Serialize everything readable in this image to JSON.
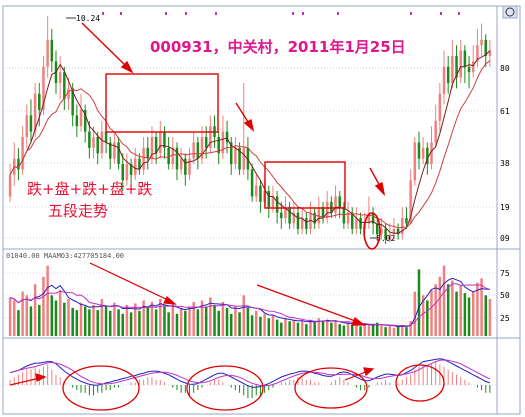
{
  "chart_data": {
    "type": "candlestick",
    "title": "000931，中关村，2011年1月25日",
    "annotation_main": [
      "跌+盘+跌+盘+跌",
      "五段走势"
    ],
    "high_label": "10.24",
    "low_label": "6.02",
    "price_axis_ticks": [
      "80",
      "61",
      "38",
      "19",
      "09"
    ],
    "volume_legend": "01040.00  MAAMO3:427705184.00",
    "volume_axis_ticks": [
      "75",
      "50",
      "25"
    ],
    "colors": {
      "up": "#f08080",
      "down": "#1a8a1a",
      "ma_short": "#7a1e1e",
      "ma_long": "#d04040",
      "vol_ma1": "#2020c0",
      "vol_ma2": "#c030c0",
      "title": "#e0168c",
      "annotation": "#ee1133",
      "box": "#e00000",
      "arrow": "#e00000",
      "grid": "#9aa8c8"
    },
    "candles": [
      {
        "o": 6.9,
        "c": 7.3,
        "h": 7.5,
        "l": 6.8
      },
      {
        "o": 7.3,
        "c": 7.6,
        "h": 7.9,
        "l": 7.1
      },
      {
        "o": 7.6,
        "c": 7.4,
        "h": 7.8,
        "l": 7.2
      },
      {
        "o": 7.4,
        "c": 8.0,
        "h": 8.2,
        "l": 7.3
      },
      {
        "o": 8.0,
        "c": 8.4,
        "h": 8.6,
        "l": 7.8
      },
      {
        "o": 8.4,
        "c": 8.1,
        "h": 8.7,
        "l": 7.9
      },
      {
        "o": 8.1,
        "c": 8.8,
        "h": 9.0,
        "l": 8.0
      },
      {
        "o": 8.8,
        "c": 8.5,
        "h": 9.0,
        "l": 8.2
      },
      {
        "o": 8.5,
        "c": 9.3,
        "h": 9.5,
        "l": 8.4
      },
      {
        "o": 9.3,
        "c": 9.8,
        "h": 10.24,
        "l": 9.1
      },
      {
        "o": 9.8,
        "c": 9.4,
        "h": 10.0,
        "l": 9.2
      },
      {
        "o": 9.4,
        "c": 9.0,
        "h": 9.6,
        "l": 8.8
      },
      {
        "o": 9.0,
        "c": 9.2,
        "h": 9.5,
        "l": 8.7
      },
      {
        "o": 9.2,
        "c": 8.7,
        "h": 9.3,
        "l": 8.5
      },
      {
        "o": 8.7,
        "c": 8.9,
        "h": 9.1,
        "l": 8.5
      },
      {
        "o": 8.9,
        "c": 8.4,
        "h": 9.0,
        "l": 8.2
      },
      {
        "o": 8.4,
        "c": 8.2,
        "h": 8.6,
        "l": 8.0
      },
      {
        "o": 8.2,
        "c": 8.5,
        "h": 8.8,
        "l": 8.1
      },
      {
        "o": 8.5,
        "c": 8.1,
        "h": 8.6,
        "l": 7.9
      },
      {
        "o": 8.1,
        "c": 7.8,
        "h": 8.3,
        "l": 7.6
      },
      {
        "o": 7.8,
        "c": 8.0,
        "h": 8.2,
        "l": 7.6
      },
      {
        "o": 8.0,
        "c": 7.7,
        "h": 8.1,
        "l": 7.5
      },
      {
        "o": 7.7,
        "c": 8.1,
        "h": 8.3,
        "l": 7.6
      },
      {
        "o": 8.1,
        "c": 7.9,
        "h": 8.4,
        "l": 7.7
      },
      {
        "o": 7.9,
        "c": 7.6,
        "h": 8.0,
        "l": 7.4
      },
      {
        "o": 7.6,
        "c": 7.9,
        "h": 8.1,
        "l": 7.5
      },
      {
        "o": 7.9,
        "c": 7.5,
        "h": 8.0,
        "l": 7.4
      },
      {
        "o": 7.5,
        "c": 7.2,
        "h": 7.7,
        "l": 7.0
      },
      {
        "o": 7.2,
        "c": 7.5,
        "h": 7.7,
        "l": 7.1
      },
      {
        "o": 7.5,
        "c": 7.3,
        "h": 7.6,
        "l": 7.1
      },
      {
        "o": 7.3,
        "c": 7.6,
        "h": 7.8,
        "l": 7.2
      },
      {
        "o": 7.6,
        "c": 7.4,
        "h": 7.7,
        "l": 7.3
      },
      {
        "o": 7.4,
        "c": 7.8,
        "h": 8.0,
        "l": 7.3
      },
      {
        "o": 7.8,
        "c": 7.6,
        "h": 8.0,
        "l": 7.4
      },
      {
        "o": 7.6,
        "c": 8.0,
        "h": 8.2,
        "l": 7.5
      },
      {
        "o": 8.0,
        "c": 7.7,
        "h": 8.1,
        "l": 7.5
      },
      {
        "o": 7.7,
        "c": 8.1,
        "h": 8.3,
        "l": 7.6
      },
      {
        "o": 8.1,
        "c": 7.8,
        "h": 8.2,
        "l": 7.6
      },
      {
        "o": 7.8,
        "c": 7.5,
        "h": 8.0,
        "l": 7.4
      },
      {
        "o": 7.5,
        "c": 7.8,
        "h": 8.0,
        "l": 7.4
      },
      {
        "o": 7.8,
        "c": 7.4,
        "h": 7.9,
        "l": 7.2
      },
      {
        "o": 7.4,
        "c": 7.6,
        "h": 7.8,
        "l": 7.3
      },
      {
        "o": 7.6,
        "c": 7.3,
        "h": 7.7,
        "l": 7.1
      },
      {
        "o": 7.3,
        "c": 7.6,
        "h": 7.8,
        "l": 7.2
      },
      {
        "o": 7.6,
        "c": 7.9,
        "h": 8.1,
        "l": 7.5
      },
      {
        "o": 7.9,
        "c": 7.6,
        "h": 8.0,
        "l": 7.4
      },
      {
        "o": 7.6,
        "c": 8.0,
        "h": 8.2,
        "l": 7.5
      },
      {
        "o": 8.0,
        "c": 7.8,
        "h": 8.2,
        "l": 7.6
      },
      {
        "o": 7.8,
        "c": 8.2,
        "h": 8.4,
        "l": 7.7
      },
      {
        "o": 8.2,
        "c": 8.0,
        "h": 8.4,
        "l": 7.8
      },
      {
        "o": 8.0,
        "c": 7.7,
        "h": 8.1,
        "l": 7.5
      },
      {
        "o": 7.7,
        "c": 8.1,
        "h": 8.4,
        "l": 7.6
      },
      {
        "o": 8.1,
        "c": 7.9,
        "h": 8.3,
        "l": 7.7
      },
      {
        "o": 7.9,
        "c": 7.5,
        "h": 8.0,
        "l": 7.3
      },
      {
        "o": 7.5,
        "c": 7.8,
        "h": 8.0,
        "l": 7.4
      },
      {
        "o": 7.8,
        "c": 7.4,
        "h": 7.9,
        "l": 7.3
      },
      {
        "o": 7.4,
        "c": 7.8,
        "h": 9.0,
        "l": 7.3
      },
      {
        "o": 7.8,
        "c": 7.4,
        "h": 8.0,
        "l": 7.2
      },
      {
        "o": 7.4,
        "c": 6.9,
        "h": 7.5,
        "l": 6.8
      },
      {
        "o": 6.9,
        "c": 7.1,
        "h": 7.3,
        "l": 6.8
      },
      {
        "o": 7.1,
        "c": 6.8,
        "h": 7.2,
        "l": 6.6
      },
      {
        "o": 6.8,
        "c": 7.0,
        "h": 7.2,
        "l": 6.7
      },
      {
        "o": 7.0,
        "c": 6.7,
        "h": 7.1,
        "l": 6.5
      },
      {
        "o": 6.7,
        "c": 6.9,
        "h": 7.1,
        "l": 6.6
      },
      {
        "o": 6.9,
        "c": 6.6,
        "h": 7.0,
        "l": 6.4
      },
      {
        "o": 6.6,
        "c": 6.5,
        "h": 6.8,
        "l": 6.3
      },
      {
        "o": 6.5,
        "c": 6.7,
        "h": 6.9,
        "l": 6.4
      },
      {
        "o": 6.7,
        "c": 6.4,
        "h": 6.8,
        "l": 6.3
      },
      {
        "o": 6.4,
        "c": 6.6,
        "h": 6.8,
        "l": 6.3
      },
      {
        "o": 6.6,
        "c": 6.3,
        "h": 6.7,
        "l": 6.2
      },
      {
        "o": 6.3,
        "c": 6.5,
        "h": 6.7,
        "l": 6.2
      },
      {
        "o": 6.5,
        "c": 6.3,
        "h": 6.6,
        "l": 6.2
      },
      {
        "o": 6.3,
        "c": 6.6,
        "h": 6.8,
        "l": 6.2
      },
      {
        "o": 6.6,
        "c": 6.4,
        "h": 6.7,
        "l": 6.3
      },
      {
        "o": 6.4,
        "c": 6.7,
        "h": 6.9,
        "l": 6.3
      },
      {
        "o": 6.7,
        "c": 6.5,
        "h": 6.8,
        "l": 6.4
      },
      {
        "o": 6.5,
        "c": 6.8,
        "h": 7.0,
        "l": 6.4
      },
      {
        "o": 6.8,
        "c": 6.6,
        "h": 6.9,
        "l": 6.5
      },
      {
        "o": 6.6,
        "c": 6.9,
        "h": 7.1,
        "l": 6.5
      },
      {
        "o": 6.9,
        "c": 6.7,
        "h": 7.0,
        "l": 6.5
      },
      {
        "o": 6.7,
        "c": 6.4,
        "h": 6.8,
        "l": 6.3
      },
      {
        "o": 6.4,
        "c": 6.6,
        "h": 6.8,
        "l": 6.3
      },
      {
        "o": 6.6,
        "c": 6.3,
        "h": 6.7,
        "l": 6.2
      },
      {
        "o": 6.3,
        "c": 6.5,
        "h": 6.7,
        "l": 6.2
      },
      {
        "o": 6.5,
        "c": 6.3,
        "h": 6.6,
        "l": 6.2
      },
      {
        "o": 6.3,
        "c": 6.4,
        "h": 6.6,
        "l": 6.2
      },
      {
        "o": 6.4,
        "c": 6.6,
        "h": 6.9,
        "l": 6.3
      },
      {
        "o": 6.6,
        "c": 6.4,
        "h": 6.7,
        "l": 6.2
      },
      {
        "o": 6.4,
        "c": 6.2,
        "h": 6.5,
        "l": 6.1
      },
      {
        "o": 6.2,
        "c": 6.3,
        "h": 6.5,
        "l": 6.1
      },
      {
        "o": 6.3,
        "c": 6.1,
        "h": 6.4,
        "l": 6.02
      },
      {
        "o": 6.1,
        "c": 6.2,
        "h": 6.4,
        "l": 6.05
      },
      {
        "o": 6.2,
        "c": 6.3,
        "h": 6.5,
        "l": 6.1
      },
      {
        "o": 6.3,
        "c": 6.2,
        "h": 6.4,
        "l": 6.1
      },
      {
        "o": 6.2,
        "c": 6.5,
        "h": 6.7,
        "l": 6.1
      },
      {
        "o": 6.5,
        "c": 6.4,
        "h": 6.7,
        "l": 6.3
      },
      {
        "o": 6.4,
        "c": 7.2,
        "h": 7.4,
        "l": 6.4
      },
      {
        "o": 7.2,
        "c": 7.9,
        "h": 8.0,
        "l": 7.1
      },
      {
        "o": 7.9,
        "c": 7.6,
        "h": 8.1,
        "l": 7.4
      },
      {
        "o": 7.6,
        "c": 7.8,
        "h": 8.0,
        "l": 7.5
      },
      {
        "o": 7.8,
        "c": 7.5,
        "h": 7.9,
        "l": 7.3
      },
      {
        "o": 7.5,
        "c": 7.9,
        "h": 8.2,
        "l": 7.4
      },
      {
        "o": 7.9,
        "c": 8.3,
        "h": 8.6,
        "l": 7.8
      },
      {
        "o": 8.3,
        "c": 8.8,
        "h": 9.0,
        "l": 8.1
      },
      {
        "o": 8.8,
        "c": 9.3,
        "h": 9.6,
        "l": 8.6
      },
      {
        "o": 9.3,
        "c": 9.0,
        "h": 9.5,
        "l": 8.8
      },
      {
        "o": 9.0,
        "c": 9.5,
        "h": 9.8,
        "l": 8.9
      },
      {
        "o": 9.5,
        "c": 9.1,
        "h": 9.7,
        "l": 8.9
      },
      {
        "o": 9.1,
        "c": 9.6,
        "h": 9.8,
        "l": 9.0
      },
      {
        "o": 9.6,
        "c": 9.3,
        "h": 9.7,
        "l": 9.0
      },
      {
        "o": 9.3,
        "c": 9.2,
        "h": 9.5,
        "l": 8.9
      },
      {
        "o": 9.2,
        "c": 9.4,
        "h": 9.7,
        "l": 9.1
      },
      {
        "o": 9.4,
        "c": 9.7,
        "h": 10.0,
        "l": 9.3
      },
      {
        "o": 9.7,
        "c": 9.8,
        "h": 10.1,
        "l": 9.5
      },
      {
        "o": 9.8,
        "c": 9.5,
        "h": 9.9,
        "l": 9.3
      },
      {
        "o": 9.5,
        "c": 9.6,
        "h": 9.8,
        "l": 9.3
      }
    ],
    "volume": [
      52,
      48,
      35,
      60,
      55,
      40,
      70,
      42,
      80,
      95,
      55,
      48,
      62,
      45,
      50,
      38,
      35,
      45,
      40,
      36,
      42,
      35,
      50,
      40,
      34,
      45,
      36,
      30,
      42,
      32,
      44,
      34,
      48,
      38,
      46,
      36,
      50,
      40,
      32,
      44,
      30,
      38,
      34,
      40,
      46,
      36,
      48,
      40,
      52,
      42,
      34,
      46,
      38,
      30,
      40,
      32,
      55,
      38,
      28,
      34,
      26,
      30,
      24,
      28,
      22,
      18,
      24,
      20,
      22,
      18,
      20,
      16,
      22,
      18,
      24,
      20,
      22,
      18,
      20,
      16,
      14,
      18,
      15,
      17,
      13,
      16,
      14,
      15,
      18,
      14,
      12,
      14,
      11,
      13,
      15,
      12,
      20,
      60,
      90,
      55,
      48,
      62,
      70,
      80,
      95,
      70,
      75,
      60,
      68,
      58,
      52,
      60,
      72,
      78,
      55,
      50
    ],
    "vol_axis_max": 100,
    "macd": [
      2,
      3,
      4,
      5,
      6,
      6,
      7,
      6,
      7,
      8,
      6,
      4,
      3,
      1,
      0,
      -1,
      -2,
      -3,
      -3,
      -4,
      -4,
      -3,
      -3,
      -2,
      -2,
      -1,
      -1,
      0,
      0,
      1,
      1,
      2,
      2,
      3,
      3,
      2,
      2,
      1,
      0,
      -1,
      -2,
      -3,
      -3,
      -4,
      -3,
      -2,
      -1,
      0,
      1,
      2,
      2,
      1,
      0,
      -1,
      -2,
      -3,
      -4,
      -5,
      -5,
      -4,
      -4,
      -3,
      -2,
      -1,
      0,
      1,
      1,
      2,
      2,
      3,
      3,
      2,
      2,
      1,
      1,
      0,
      0,
      1,
      2,
      3,
      2,
      1,
      0,
      -1,
      -2,
      -2,
      -1,
      0,
      1,
      1,
      2,
      1,
      0,
      1,
      2,
      3,
      4,
      6,
      7,
      8,
      7,
      8,
      9,
      8,
      7,
      6,
      5,
      4,
      3,
      2,
      1,
      0,
      -1,
      -2,
      -3,
      -3
    ]
  }
}
